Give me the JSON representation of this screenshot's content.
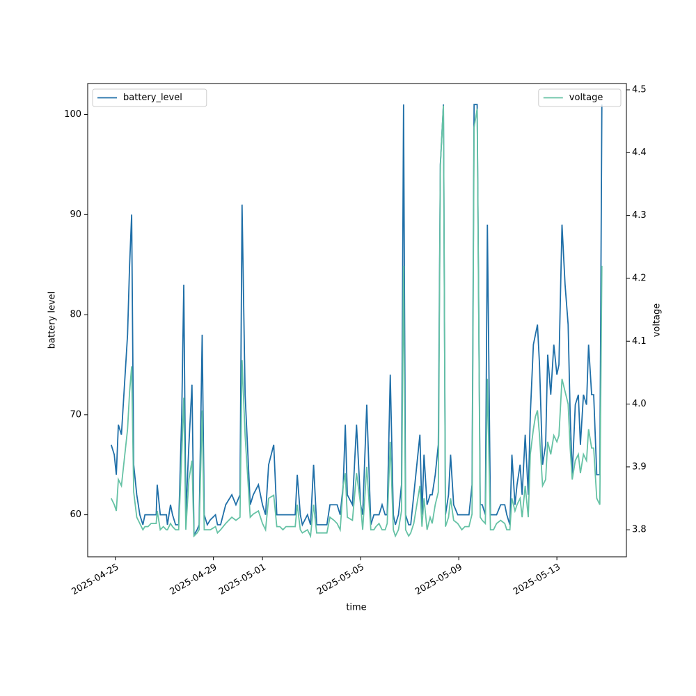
{
  "chart_data": {
    "type": "line",
    "x_label": "time",
    "y_label": "battery level",
    "y2_label": "voltage",
    "x": [
      "2025-04-24T20:00",
      "2025-04-24T23:00",
      "2025-04-25T01:00",
      "2025-04-25T03:00",
      "2025-04-25T06:00",
      "2025-04-25T12:00",
      "2025-04-25T14:00",
      "2025-04-25T16:00",
      "2025-04-25T18:00",
      "2025-04-25T21:00",
      "2025-04-26T00:00",
      "2025-04-26T03:00",
      "2025-04-26T05:00",
      "2025-04-26T08:00",
      "2025-04-26T11:00",
      "2025-04-26T13:00",
      "2025-04-26T16:00",
      "2025-04-26T17:00",
      "2025-04-26T20:00",
      "2025-04-26T23:00",
      "2025-04-27T02:00",
      "2025-04-27T03:00",
      "2025-04-27T06:00",
      "2025-04-27T08:00",
      "2025-04-27T11:00",
      "2025-04-27T14:00",
      "2025-04-27T17:00",
      "2025-04-27T19:00",
      "2025-04-27T21:00",
      "2025-04-28T00:00",
      "2025-04-28T03:00",
      "2025-04-28T05:00",
      "2025-04-28T08:00",
      "2025-04-28T10:00",
      "2025-04-28T13:00",
      "2025-04-28T15:00",
      "2025-04-28T18:00",
      "2025-04-28T21:00",
      "2025-04-29T02:00",
      "2025-04-29T04:00",
      "2025-04-29T07:00",
      "2025-04-29T12:00",
      "2025-04-29T18:00",
      "2025-04-29T22:00",
      "2025-04-30T02:00",
      "2025-04-30T04:00",
      "2025-04-30T07:00",
      "2025-04-30T12:00",
      "2025-04-30T15:00",
      "2025-04-30T20:00",
      "2025-05-01T00:00",
      "2025-05-01T03:00",
      "2025-05-01T06:00",
      "2025-05-01T11:00",
      "2025-05-01T14:00",
      "2025-05-01T17:00",
      "2025-05-01T20:00",
      "2025-05-01T23:00",
      "2025-05-02T04:00",
      "2025-05-02T08:00",
      "2025-05-02T10:00",
      "2025-05-02T13:00",
      "2025-05-02T15:00",
      "2025-05-02T20:00",
      "2025-05-02T23:00",
      "2025-05-03T02:00",
      "2025-05-03T05:00",
      "2025-05-03T08:00",
      "2025-05-03T12:00",
      "2025-05-03T15:00",
      "2025-05-03T18:00",
      "2025-05-03T22:00",
      "2025-05-04T01:00",
      "2025-05-04T04:00",
      "2025-05-04T07:00",
      "2025-05-04T09:00",
      "2025-05-04T11:00",
      "2025-05-04T16:00",
      "2025-05-04T20:00",
      "2025-05-05T00:00",
      "2025-05-05T02:00",
      "2025-05-05T06:00",
      "2025-05-05T10:00",
      "2025-05-05T13:00",
      "2025-05-05T15:00",
      "2025-05-05T18:00",
      "2025-05-05T21:00",
      "2025-05-06T00:00",
      "2025-05-06T02:00",
      "2025-05-06T05:00",
      "2025-05-06T08:00",
      "2025-05-06T10:00",
      "2025-05-06T13:00",
      "2025-05-06T16:00",
      "2025-05-06T18:00",
      "2025-05-06T20:00",
      "2025-05-06T23:00",
      "2025-05-07T01:00",
      "2025-05-07T04:00",
      "2025-05-07T07:00",
      "2025-05-07T10:00",
      "2025-05-07T12:00",
      "2025-05-07T14:00",
      "2025-05-07T17:00",
      "2025-05-07T20:00",
      "2025-05-07T22:00",
      "2025-05-08T01:00",
      "2025-05-08T04:00",
      "2025-05-08T06:00",
      "2025-05-08T09:00",
      "2025-05-08T11:00",
      "2025-05-08T14:00",
      "2025-05-08T16:00",
      "2025-05-08T19:00",
      "2025-05-08T23:00",
      "2025-05-09T03:00",
      "2025-05-09T06:00",
      "2025-05-09T10:00",
      "2025-05-09T13:00",
      "2025-05-09T15:00",
      "2025-05-09T18:00",
      "2025-05-09T21:00",
      "2025-05-09T23:00",
      "2025-05-10T02:00",
      "2025-05-10T04:00",
      "2025-05-10T07:00",
      "2025-05-10T10:00",
      "2025-05-10T13:00",
      "2025-05-10T17:00",
      "2025-05-10T21:00",
      "2025-05-10T23:00",
      "2025-05-11T02:00",
      "2025-05-11T04:00",
      "2025-05-11T07:00",
      "2025-05-11T09:00",
      "2025-05-11T12:00",
      "2025-05-11T14:00",
      "2025-05-11T17:00",
      "2025-05-11T20:00",
      "2025-05-11T22:00",
      "2025-05-12T01:00",
      "2025-05-12T03:00",
      "2025-05-12T05:00",
      "2025-05-12T07:00",
      "2025-05-12T10:00",
      "2025-05-12T13:00",
      "2025-05-12T15:00",
      "2025-05-12T18:00",
      "2025-05-12T21:00",
      "2025-05-13T00:00",
      "2025-05-13T02:00",
      "2025-05-13T05:00",
      "2025-05-13T08:00",
      "2025-05-13T11:00",
      "2025-05-13T13:00",
      "2025-05-13T15:00",
      "2025-05-13T18:00",
      "2025-05-13T21:00",
      "2025-05-13T23:00",
      "2025-05-14T02:00",
      "2025-05-14T05:00",
      "2025-05-14T07:00",
      "2025-05-14T10:00",
      "2025-05-14T12:00",
      "2025-05-14T15:00",
      "2025-05-14T18:00",
      "2025-05-14T20:00"
    ],
    "series": [
      {
        "name": "battery_level",
        "color": "#1f6fa8",
        "axis": "y",
        "legend": "upper left",
        "values": [
          67,
          66,
          64,
          69,
          68,
          78,
          85,
          90,
          65,
          62,
          60,
          59,
          60,
          60,
          60,
          60,
          60,
          63,
          60,
          60,
          60,
          59,
          61,
          60,
          59,
          59,
          70,
          83,
          60,
          67,
          73,
          58,
          58.5,
          59,
          78,
          60,
          59,
          59.5,
          60,
          59,
          59,
          61,
          62,
          61,
          62,
          91,
          72,
          61,
          62,
          63,
          61,
          60,
          65,
          67,
          60,
          60,
          60,
          60,
          60,
          60,
          64,
          60,
          59,
          60,
          59,
          65,
          59,
          59,
          59,
          59,
          61,
          61,
          61,
          60,
          63,
          69,
          62,
          61,
          69,
          61,
          60,
          71,
          59,
          60,
          60,
          60,
          61,
          60,
          60,
          74,
          60,
          59,
          60,
          63,
          101,
          60,
          59,
          59,
          62,
          65,
          68,
          60,
          66,
          61,
          62,
          62,
          64,
          67,
          95,
          101,
          60,
          62,
          66,
          61,
          60,
          60,
          60,
          60,
          63,
          101,
          101,
          61,
          61,
          60,
          89,
          60,
          60,
          60,
          61,
          61,
          60,
          59,
          66,
          61,
          63,
          65,
          62,
          68,
          62,
          70,
          77,
          78,
          79,
          75,
          65,
          67,
          76,
          72,
          77,
          74,
          75,
          89,
          83,
          79,
          70,
          64,
          71,
          72,
          67,
          72,
          71,
          77,
          72,
          72,
          64,
          64,
          101
        ]
      },
      {
        "name": "voltage",
        "color": "#66c2a5",
        "axis": "y2",
        "legend": "upper right",
        "values": [
          3.85,
          3.84,
          3.83,
          3.88,
          3.87,
          3.96,
          4.02,
          4.06,
          3.86,
          3.82,
          3.81,
          3.8,
          3.805,
          3.805,
          3.81,
          3.81,
          3.81,
          3.83,
          3.8,
          3.805,
          3.8,
          3.8,
          3.81,
          3.805,
          3.8,
          3.8,
          3.92,
          4.01,
          3.8,
          3.88,
          3.91,
          3.79,
          3.795,
          3.8,
          3.99,
          3.8,
          3.8,
          3.8,
          3.805,
          3.795,
          3.8,
          3.81,
          3.82,
          3.815,
          3.82,
          4.07,
          3.95,
          3.82,
          3.825,
          3.83,
          3.81,
          3.8,
          3.85,
          3.855,
          3.805,
          3.805,
          3.8,
          3.805,
          3.805,
          3.805,
          3.84,
          3.8,
          3.795,
          3.8,
          3.79,
          3.84,
          3.795,
          3.795,
          3.795,
          3.795,
          3.82,
          3.815,
          3.81,
          3.8,
          3.87,
          3.89,
          3.82,
          3.815,
          3.89,
          3.84,
          3.8,
          3.9,
          3.8,
          3.8,
          3.805,
          3.81,
          3.8,
          3.8,
          3.81,
          3.94,
          3.8,
          3.79,
          3.8,
          3.83,
          4.22,
          3.8,
          3.79,
          3.795,
          3.81,
          3.84,
          3.87,
          3.805,
          3.85,
          3.8,
          3.82,
          3.81,
          3.84,
          3.86,
          4.38,
          4.475,
          3.805,
          3.82,
          3.85,
          3.815,
          3.81,
          3.8,
          3.805,
          3.805,
          3.825,
          4.44,
          4.47,
          3.82,
          3.815,
          3.81,
          4.04,
          3.8,
          3.8,
          3.81,
          3.815,
          3.81,
          3.8,
          3.8,
          3.85,
          3.83,
          3.84,
          3.85,
          3.82,
          3.87,
          3.82,
          3.92,
          3.96,
          3.98,
          3.99,
          3.95,
          3.87,
          3.88,
          3.94,
          3.92,
          3.95,
          3.94,
          3.95,
          4.04,
          4.02,
          4,
          3.93,
          3.88,
          3.91,
          3.92,
          3.89,
          3.92,
          3.91,
          3.96,
          3.93,
          3.93,
          3.85,
          3.84,
          4.22
        ]
      }
    ],
    "xlim": [
      "2025-04-23T21:00",
      "2025-05-15T20:00"
    ],
    "xticks": [
      "2025-04-25",
      "2025-04-29",
      "2025-05-01",
      "2025-05-05",
      "2025-05-09",
      "2025-05-13"
    ],
    "ylim": [
      55.8,
      103.1
    ],
    "yticks": [
      60,
      70,
      80,
      90,
      100
    ],
    "y2lim": [
      3.757,
      4.51
    ],
    "y2ticks": [
      3.8,
      3.9,
      {
        "value": 4,
        "label": "4.0"
      },
      4.1,
      4.2,
      4.3,
      4.4,
      4.5
    ]
  }
}
